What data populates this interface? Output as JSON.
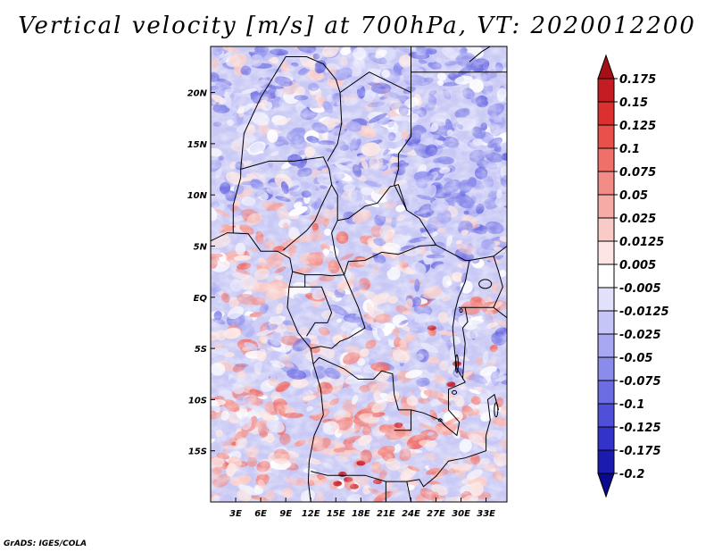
{
  "title": "Vertical velocity [m/s] at 700hPa, VT: 2020012200",
  "credit": "GrADS: IGES/COLA",
  "map": {
    "lat_range": [
      -20,
      24.5
    ],
    "lon_range": [
      0,
      35.5
    ],
    "lat_ticks": [
      {
        "value": 20,
        "label": "20N"
      },
      {
        "value": 15,
        "label": "15N"
      },
      {
        "value": 10,
        "label": "10N"
      },
      {
        "value": 5,
        "label": "5N"
      },
      {
        "value": 0,
        "label": "EQ"
      },
      {
        "value": -5,
        "label": "5S"
      },
      {
        "value": -10,
        "label": "10S"
      },
      {
        "value": -15,
        "label": "15S"
      }
    ],
    "lon_ticks": [
      {
        "value": 3,
        "label": "3E"
      },
      {
        "value": 6,
        "label": "6E"
      },
      {
        "value": 9,
        "label": "9E"
      },
      {
        "value": 12,
        "label": "12E"
      },
      {
        "value": 15,
        "label": "15E"
      },
      {
        "value": 18,
        "label": "18E"
      },
      {
        "value": 21,
        "label": "21E"
      },
      {
        "value": 24,
        "label": "24E"
      },
      {
        "value": 27,
        "label": "27E"
      },
      {
        "value": 30,
        "label": "30E"
      },
      {
        "value": 33,
        "label": "33E"
      }
    ]
  },
  "colorbar": {
    "labels": [
      "0.175",
      "0.15",
      "0.125",
      "0.1",
      "0.075",
      "0.05",
      "0.025",
      "0.0125",
      "0.005",
      "-0.005",
      "-0.0125",
      "-0.025",
      "-0.05",
      "-0.075",
      "-0.1",
      "-0.125",
      "-0.175",
      "-0.2"
    ],
    "colors": [
      "#a50f15",
      "#c51b23",
      "#dc2f2f",
      "#e8504c",
      "#ef6f69",
      "#f28c87",
      "#f6aba6",
      "#f9cbc7",
      "#fce5e2",
      "#ffffff",
      "#e1e1fb",
      "#c5c5f7",
      "#a8a8f2",
      "#8b8bec",
      "#6d6de3",
      "#4f4fd8",
      "#3333c9",
      "#1b1bb0",
      "#0a0a8e"
    ]
  }
}
